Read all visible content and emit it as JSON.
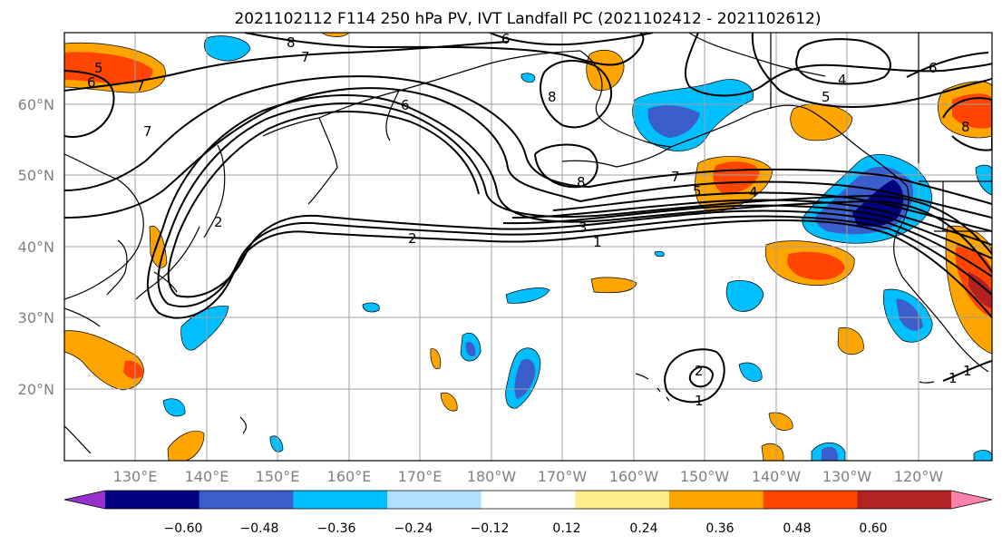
{
  "title": "2021102112 F114 250 hPa PV, IVT Landfall PC (2021102412 - 2021102612)",
  "lat_labels": [
    "60°N",
    "50°N",
    "40°N",
    "30°N",
    "20°N"
  ],
  "lon_labels": [
    "130°E",
    "140°E",
    "150°E",
    "160°E",
    "170°E",
    "180°W",
    "170°W",
    "160°W",
    "150°W",
    "140°W",
    "130°W",
    "120°W"
  ],
  "colorbar": {
    "ticks": [
      "−0.60",
      "−0.48",
      "−0.36",
      "−0.24",
      "−0.12",
      "0.12",
      "0.24",
      "0.36",
      "0.48",
      "0.60"
    ],
    "colors": [
      "#9932CC",
      "#000080",
      "#3A5FCD",
      "#00BFFF",
      "#B0E2FF",
      "#FFFFFF",
      "#FFEC8B",
      "#FFA500",
      "#FF4500",
      "#B22222",
      "#FF82AB"
    ]
  },
  "contour_labels": [
    "5",
    "6",
    "8",
    "7",
    "6",
    "7",
    "6",
    "7",
    "8",
    "4",
    "5",
    "6",
    "2",
    "8",
    "7",
    "5",
    "4",
    "3",
    "1",
    "2",
    "1",
    "2",
    "1",
    "8",
    "1"
  ]
}
